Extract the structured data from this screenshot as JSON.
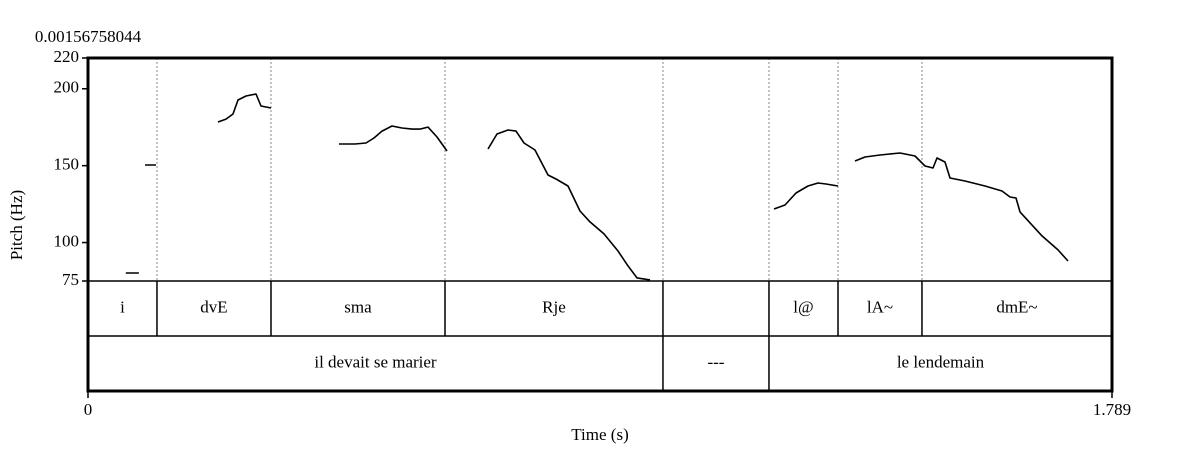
{
  "chart_data": {
    "type": "line",
    "top_left_label": "0.00156758044",
    "ylabel": "Pitch (Hz)",
    "xlabel": "Time (s)",
    "xlim": [
      0,
      1.789
    ],
    "xticks": [
      0,
      1.789
    ],
    "ylim": [
      75,
      220
    ],
    "yticks": [
      75,
      100,
      150,
      200,
      220
    ],
    "x": [
      0.066,
      0.089,
      null,
      0.0996,
      0.1188,
      null,
      0.2271,
      0.2411,
      0.2533,
      0.2621,
      0.276,
      0.2935,
      0.3022,
      0.3197,
      null,
      0.4385,
      0.4665,
      0.4857,
      0.4997,
      0.5136,
      0.5311,
      0.5486,
      0.566,
      0.58,
      0.594,
      0.6097,
      0.6272,
      null,
      0.6988,
      0.7145,
      0.7338,
      0.7477,
      0.7617,
      0.7809,
      0.8036,
      0.8176,
      0.8386,
      0.8595,
      0.877,
      0.9015,
      0.9259,
      0.9434,
      0.9591,
      0.9818,
      null,
      1.1985,
      1.2177,
      1.2369,
      1.2579,
      1.2753,
      1.2893,
      1.3103,
      null,
      1.34,
      1.3575,
      1.3836,
      1.4186,
      1.4448,
      1.4623,
      1.4762,
      1.4832,
      1.4972,
      1.5059,
      1.5321,
      1.5671,
      1.5968,
      1.6108,
      1.6212,
      1.6282,
      1.6667,
      1.6946,
      1.7121
    ],
    "series": [
      {
        "color": "#000000",
        "values": [
          80.2,
          80.2,
          null,
          150.4,
          150.4,
          null,
          178.4,
          180.3,
          183.6,
          192.7,
          195.3,
          196.6,
          188.8,
          187.5,
          null,
          164.1,
          164.1,
          164.7,
          168.0,
          172.5,
          175.8,
          174.5,
          173.8,
          173.8,
          175.1,
          168.6,
          159.5,
          null,
          160.8,
          170.6,
          173.2,
          172.5,
          164.7,
          160.2,
          143.9,
          141.3,
          136.8,
          120.5,
          113.4,
          105.6,
          94.5,
          84.8,
          77.0,
          75.7,
          null,
          121.8,
          124.4,
          132.2,
          136.8,
          138.7,
          138.1,
          136.8,
          null,
          153.0,
          155.6,
          156.9,
          158.2,
          156.3,
          149.8,
          148.5,
          155.0,
          152.4,
          142.0,
          140.0,
          136.8,
          133.5,
          129.6,
          129.0,
          119.9,
          104.3,
          95.2,
          88.0
        ]
      }
    ],
    "tiers": [
      {
        "boundaries": [
          0.1205,
          0.3197,
          0.6237,
          1.0045,
          1.1897,
          1.3103,
          1.457
        ],
        "labels": [
          "i",
          "dvE",
          "sma",
          "Rje",
          null,
          "l@",
          "lA~",
          "dmE~"
        ]
      },
      {
        "boundaries": [
          1.0045,
          1.1897
        ],
        "labels": [
          "il devait se marier",
          "---",
          "le lendemain"
        ]
      }
    ]
  }
}
